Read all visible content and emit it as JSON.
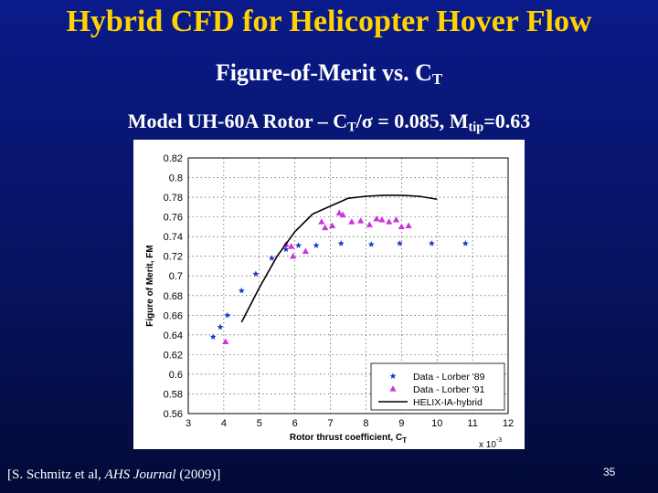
{
  "slide": {
    "title": "Hybrid CFD for Helicopter Hover Flow",
    "subtitle_main": "Figure-of-Merit vs. C",
    "subtitle_sub": "T",
    "model_p1": "Model UH-60A Rotor – C",
    "model_sub1": "T",
    "model_p2": "/σ = 0.085, M",
    "model_sub2": "tip",
    "model_p3": "=0.63",
    "citation_pre": "[S. Schmitz et al, ",
    "citation_journal": "AHS Journal",
    "citation_post": " (2009)]",
    "page_number": "35"
  },
  "chart_data": {
    "type": "scatter",
    "title": "",
    "xlabel": "Rotor thrust coefficient, C",
    "xlabel_sub": "T",
    "ylabel": "Figure of Merit, FM",
    "x_multiplier": "x 10",
    "x_multiplier_exp": "-3",
    "xlim": [
      3,
      12
    ],
    "ylim": [
      0.56,
      0.82
    ],
    "xticks": [
      "3",
      "4",
      "5",
      "6",
      "7",
      "8",
      "9",
      "10",
      "11",
      "12"
    ],
    "yticks": [
      "0.82",
      "0.8",
      "0.78",
      "0.76",
      "0.74",
      "0.72",
      "0.7",
      "0.68",
      "0.66",
      "0.64",
      "0.62",
      "0.6",
      "0.58",
      "0.56"
    ],
    "grid": true,
    "legend_position": "bottom-right",
    "series": [
      {
        "name": "Data - Lorber '89",
        "marker": "star",
        "color": "#1a3cc8",
        "x": [
          3.7,
          3.9,
          4.1,
          4.5,
          4.9,
          5.35,
          5.75,
          6.1,
          6.6,
          7.3,
          8.15,
          8.95,
          9.85,
          10.8
        ],
        "y": [
          0.638,
          0.648,
          0.66,
          0.685,
          0.702,
          0.718,
          0.727,
          0.731,
          0.731,
          0.733,
          0.732,
          0.733,
          0.733,
          0.733
        ]
      },
      {
        "name": "Data - Lorber '91",
        "marker": "triangle",
        "color": "#cc33dd",
        "x": [
          4.05,
          5.75,
          5.9,
          5.95,
          6.3,
          6.75,
          6.85,
          7.05,
          7.25,
          7.35,
          7.6,
          7.85,
          8.1,
          8.3,
          8.45,
          8.65,
          8.85,
          9.0,
          9.2
        ],
        "y": [
          0.633,
          0.732,
          0.73,
          0.72,
          0.725,
          0.755,
          0.749,
          0.751,
          0.764,
          0.762,
          0.755,
          0.756,
          0.752,
          0.758,
          0.757,
          0.755,
          0.757,
          0.75,
          0.751
        ]
      },
      {
        "name": "HELIX-IA-hybrid",
        "marker": "line",
        "color": "#000000",
        "x": [
          4.5,
          5.0,
          5.5,
          6.0,
          6.5,
          7.0,
          7.5,
          8.0,
          8.5,
          9.0,
          9.5,
          10.0
        ],
        "y": [
          0.653,
          0.688,
          0.72,
          0.745,
          0.763,
          0.771,
          0.779,
          0.781,
          0.782,
          0.782,
          0.781,
          0.778
        ]
      }
    ]
  }
}
